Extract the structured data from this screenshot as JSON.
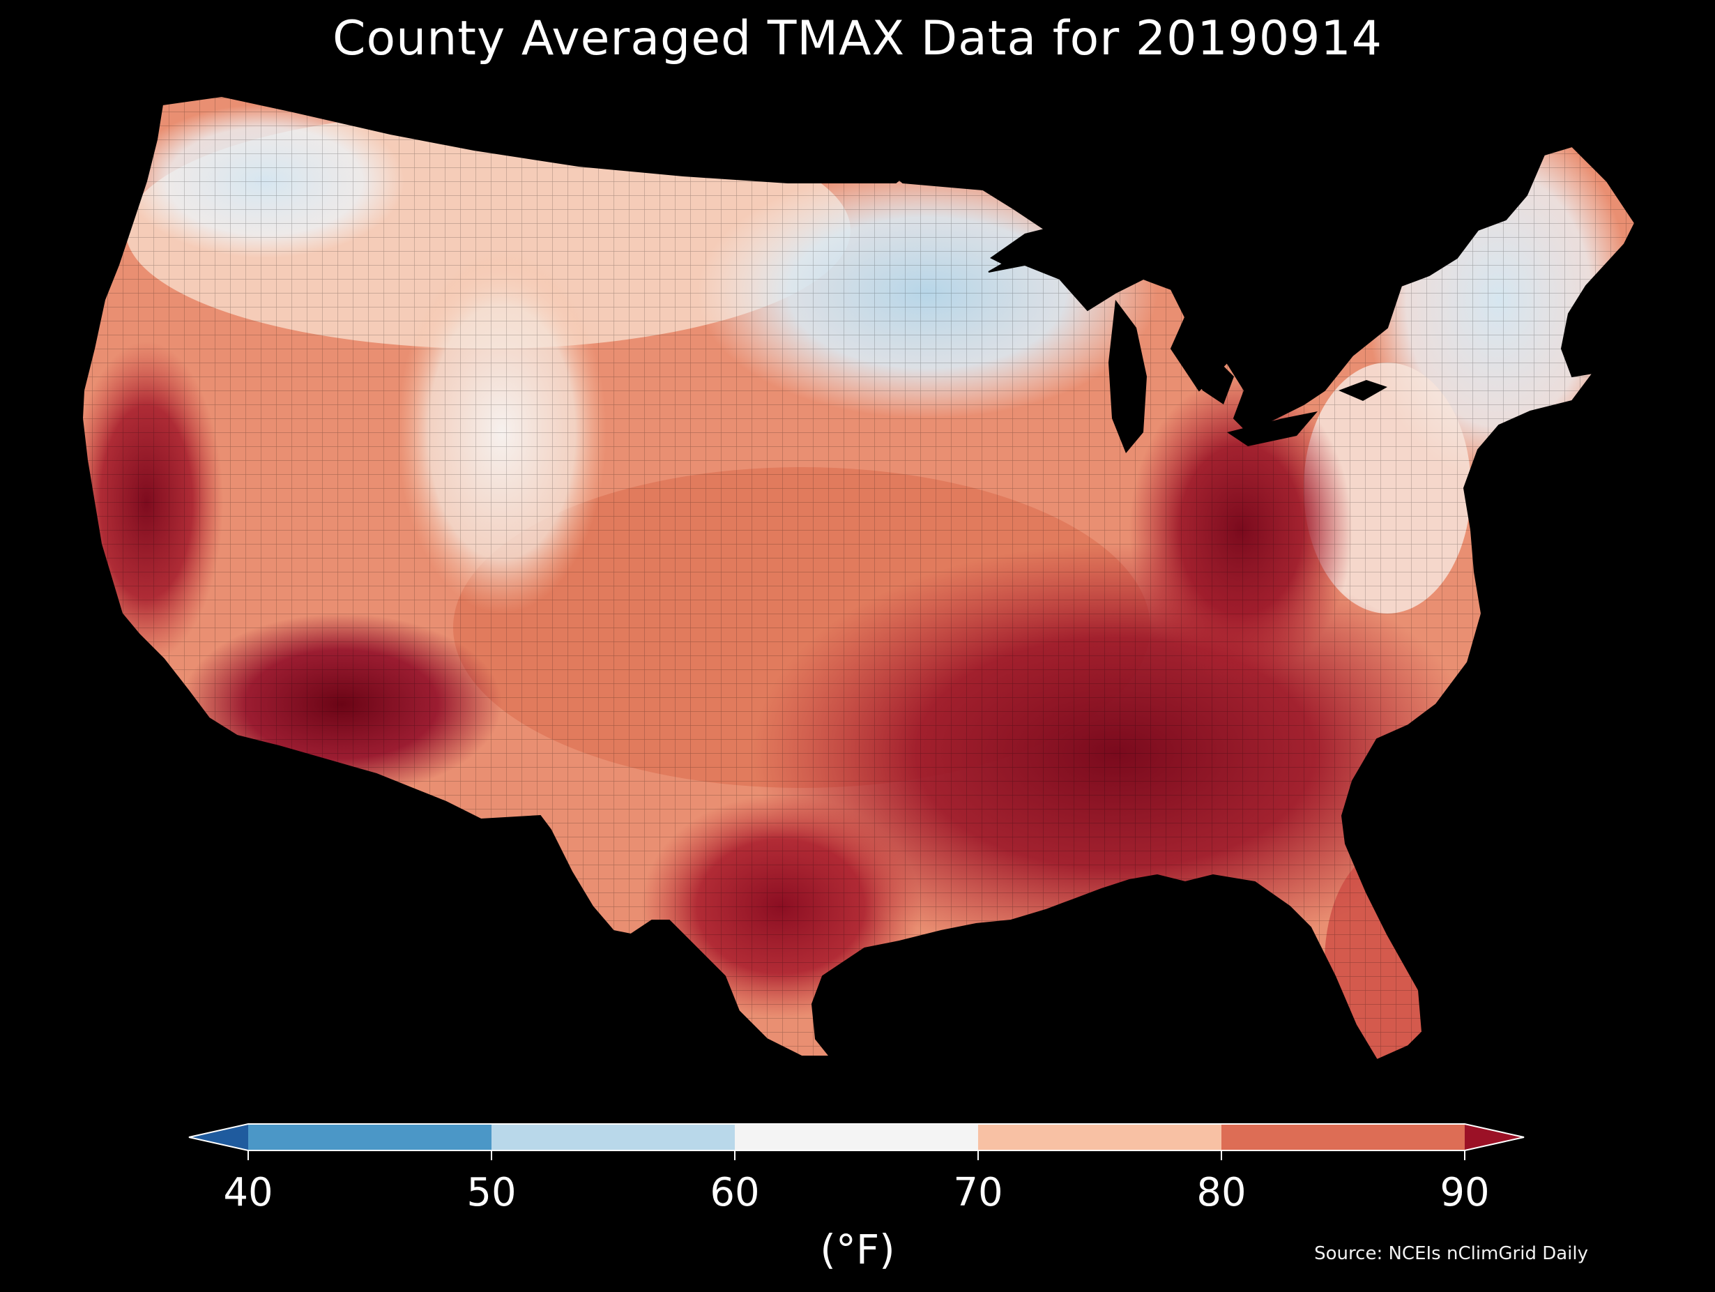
{
  "title": "County Averaged TMAX Data for 20190914",
  "colorbar": {
    "ticks": [
      "40",
      "50",
      "60",
      "70",
      "80",
      "90"
    ],
    "units": "(°F)",
    "bins": [
      {
        "range": [
          30,
          40
        ],
        "color": "#1f5b9e",
        "extend": "min"
      },
      {
        "range": [
          40,
          50
        ],
        "color": "#4b97c7"
      },
      {
        "range": [
          50,
          60
        ],
        "color": "#b9d8ea"
      },
      {
        "range": [
          60,
          70
        ],
        "color": "#f4f4f4"
      },
      {
        "range": [
          70,
          80
        ],
        "color": "#f8c1a4"
      },
      {
        "range": [
          80,
          90
        ],
        "color": "#dd6d55"
      },
      {
        "range": [
          90,
          100
        ],
        "color": "#9b1126",
        "extend": "max"
      }
    ]
  },
  "source": "Source: NCEIs nClimGrid Daily",
  "map": {
    "region": "Contiguous United States",
    "variable": "TMAX",
    "date": "20190914",
    "patterns": [
      {
        "region": "Pacific Northwest",
        "approx_f": "60-70"
      },
      {
        "region": "Upper Midwest / Minnesota",
        "approx_f": "55-65"
      },
      {
        "region": "New England",
        "approx_f": "60-70"
      },
      {
        "region": "Northern Rockies / Wyoming",
        "approx_f": "60-70"
      },
      {
        "region": "Great Plains",
        "approx_f": "75-85"
      },
      {
        "region": "Central Valley California",
        "approx_f": "85-95"
      },
      {
        "region": "Desert Southwest",
        "approx_f": "90-100"
      },
      {
        "region": "Ohio Valley / Kentucky",
        "approx_f": "88-95"
      },
      {
        "region": "Deep South / Gulf Coast",
        "approx_f": "88-95"
      },
      {
        "region": "Texas",
        "approx_f": "85-95"
      },
      {
        "region": "Florida",
        "approx_f": "85-90"
      },
      {
        "region": "Appalachians",
        "approx_f": "75-82"
      }
    ]
  }
}
